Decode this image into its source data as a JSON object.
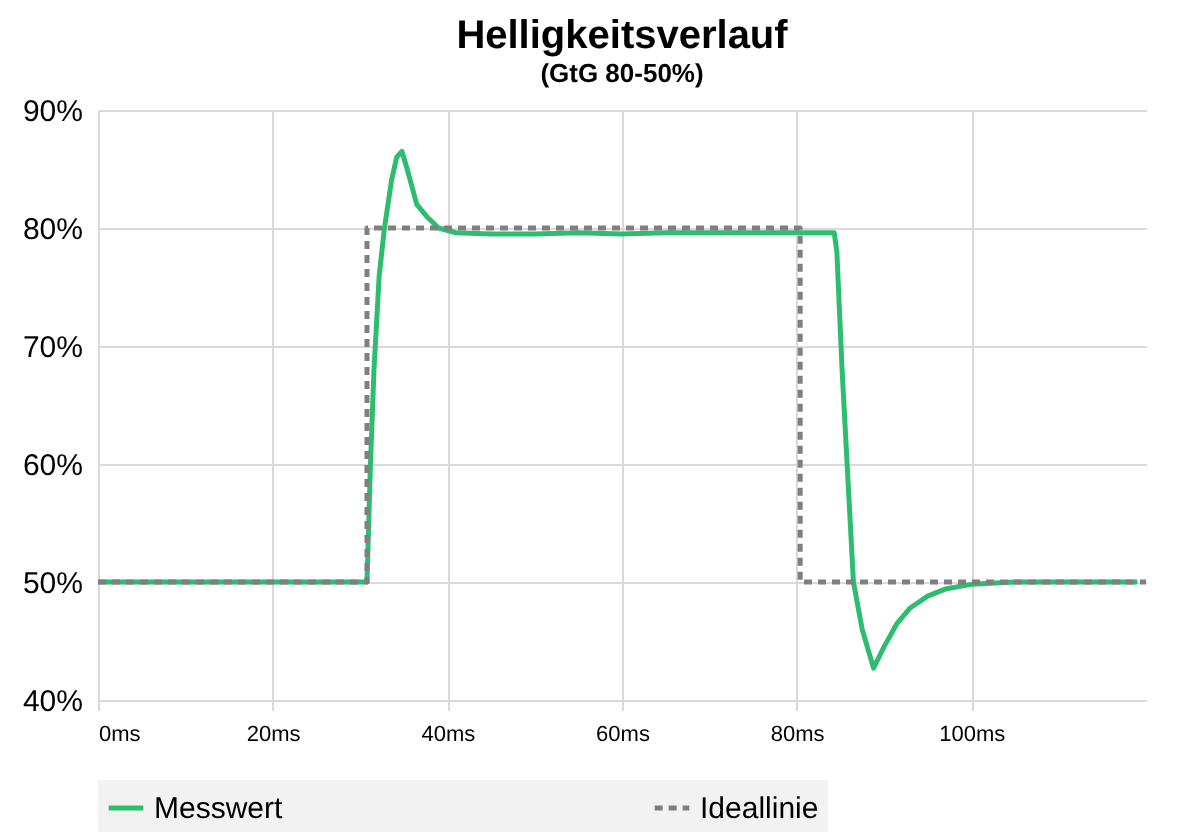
{
  "chart_data": {
    "type": "line",
    "title": "Helligkeitsverlauf",
    "subtitle": "(GtG 80-50%)",
    "series": [
      {
        "name": "Messwert",
        "color": "#2dbd6e",
        "line_style": "solid",
        "x": [
          0,
          5,
          10,
          15,
          20,
          25,
          30,
          30.8,
          31.2,
          31.6,
          32.2,
          32.8,
          33.6,
          34.2,
          34.8,
          35.4,
          36.5,
          37.6,
          39,
          41,
          45,
          50,
          55,
          60,
          65,
          70,
          75,
          80,
          84.3,
          84.6,
          85.2,
          86.5,
          87.5,
          88.8,
          90,
          91.5,
          93,
          95,
          97,
          100,
          105,
          110,
          115,
          119
        ],
        "values": [
          50,
          50,
          50,
          50,
          50,
          50,
          50,
          50,
          60,
          68,
          76,
          80,
          84,
          86,
          86.5,
          85,
          82,
          81,
          80,
          79.6,
          79.5,
          79.5,
          79.6,
          79.5,
          79.6,
          79.6,
          79.6,
          79.6,
          79.6,
          78,
          68,
          50,
          46,
          42.7,
          44.5,
          46.5,
          47.8,
          48.8,
          49.4,
          49.8,
          50,
          50,
          50,
          50
        ]
      },
      {
        "name": "Ideallinie",
        "color": "#7f7f7f",
        "line_style": "dashed",
        "x": [
          0,
          30.8,
          30.8,
          80.4,
          80.4,
          120
        ],
        "values": [
          50,
          50,
          80,
          80,
          50,
          50
        ]
      }
    ],
    "xlim": [
      0,
      120
    ],
    "xticks": [
      {
        "value": 0,
        "label": "0ms"
      },
      {
        "value": 20,
        "label": "20ms"
      },
      {
        "value": 40,
        "label": "40ms"
      },
      {
        "value": 60,
        "label": "60ms"
      },
      {
        "value": 80,
        "label": "80ms"
      },
      {
        "value": 100,
        "label": "100ms"
      }
    ],
    "ylim": [
      40,
      90
    ],
    "yticks": [
      {
        "value": 40,
        "label": "40%"
      },
      {
        "value": 50,
        "label": "50%"
      },
      {
        "value": 60,
        "label": "60%"
      },
      {
        "value": 70,
        "label": "70%"
      },
      {
        "value": 80,
        "label": "80%"
      },
      {
        "value": 90,
        "label": "90%"
      }
    ],
    "grid": true,
    "legend": "bottom",
    "marker": "none"
  }
}
